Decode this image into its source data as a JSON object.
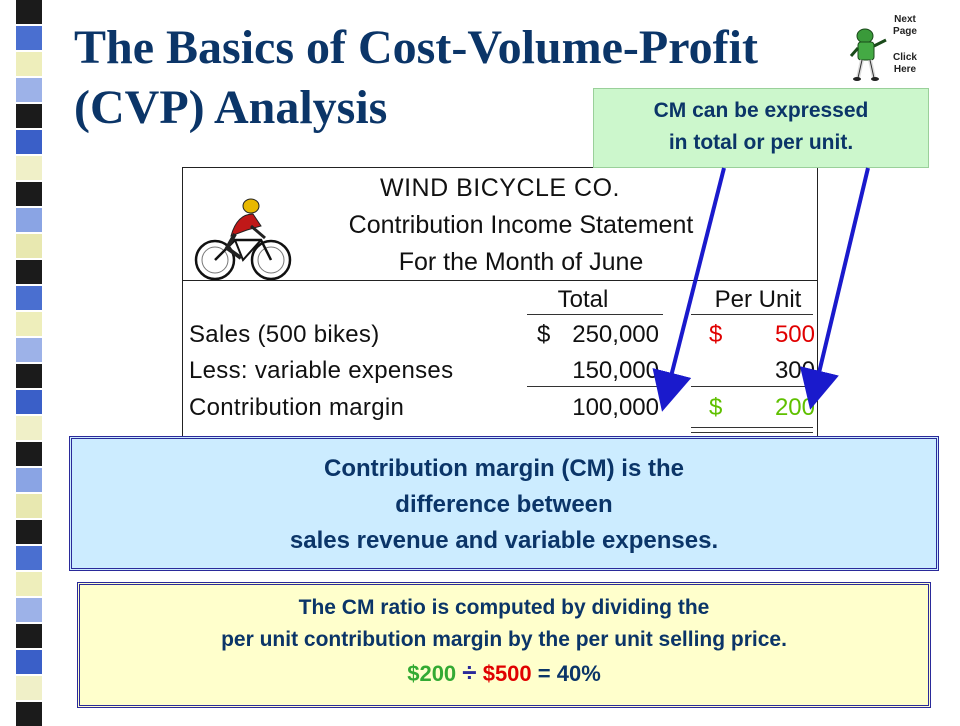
{
  "title": {
    "line1": "The Basics of Cost-Volume-Profit",
    "line2": "(CVP) Analysis"
  },
  "next_page": {
    "top": "Next Page",
    "bottom": "Click Here",
    "icon": "football-player-icon"
  },
  "statement": {
    "company": "WIND BICYCLE CO.",
    "name": "Contribution Income Statement",
    "period": "For the Month of June",
    "icon": "cyclist-icon",
    "columns": {
      "total": "Total",
      "per_unit": "Per Unit"
    },
    "rows": [
      {
        "label": "Sales (500 bikes)",
        "total_prefix": "$",
        "total": "250,000",
        "unit_prefix": "$",
        "per_unit": "500"
      },
      {
        "label": "Less: variable expenses",
        "total_prefix": "",
        "total": "150,000",
        "unit_prefix": "",
        "per_unit": "300"
      },
      {
        "label": "Contribution margin",
        "total_prefix": "",
        "total": "100,000",
        "unit_prefix": "$",
        "per_unit": "200"
      }
    ]
  },
  "callout": {
    "line1": "CM can be expressed",
    "line2": "in total or per unit."
  },
  "definition": {
    "line1": "Contribution margin (CM) is the",
    "line2": "difference between",
    "line3": "sales revenue and variable expenses."
  },
  "ratio": {
    "line1": "The CM ratio is computed by dividing the",
    "line2": "per unit contribution margin by the per unit selling price.",
    "formula": {
      "numerator": "$200",
      "operator": "÷",
      "denominator": "$500",
      "result": "= 40%"
    }
  },
  "colors": {
    "title": "#0b3568",
    "red": "#e00000",
    "green": "#5fc000",
    "arrow": "#1a1acc"
  }
}
